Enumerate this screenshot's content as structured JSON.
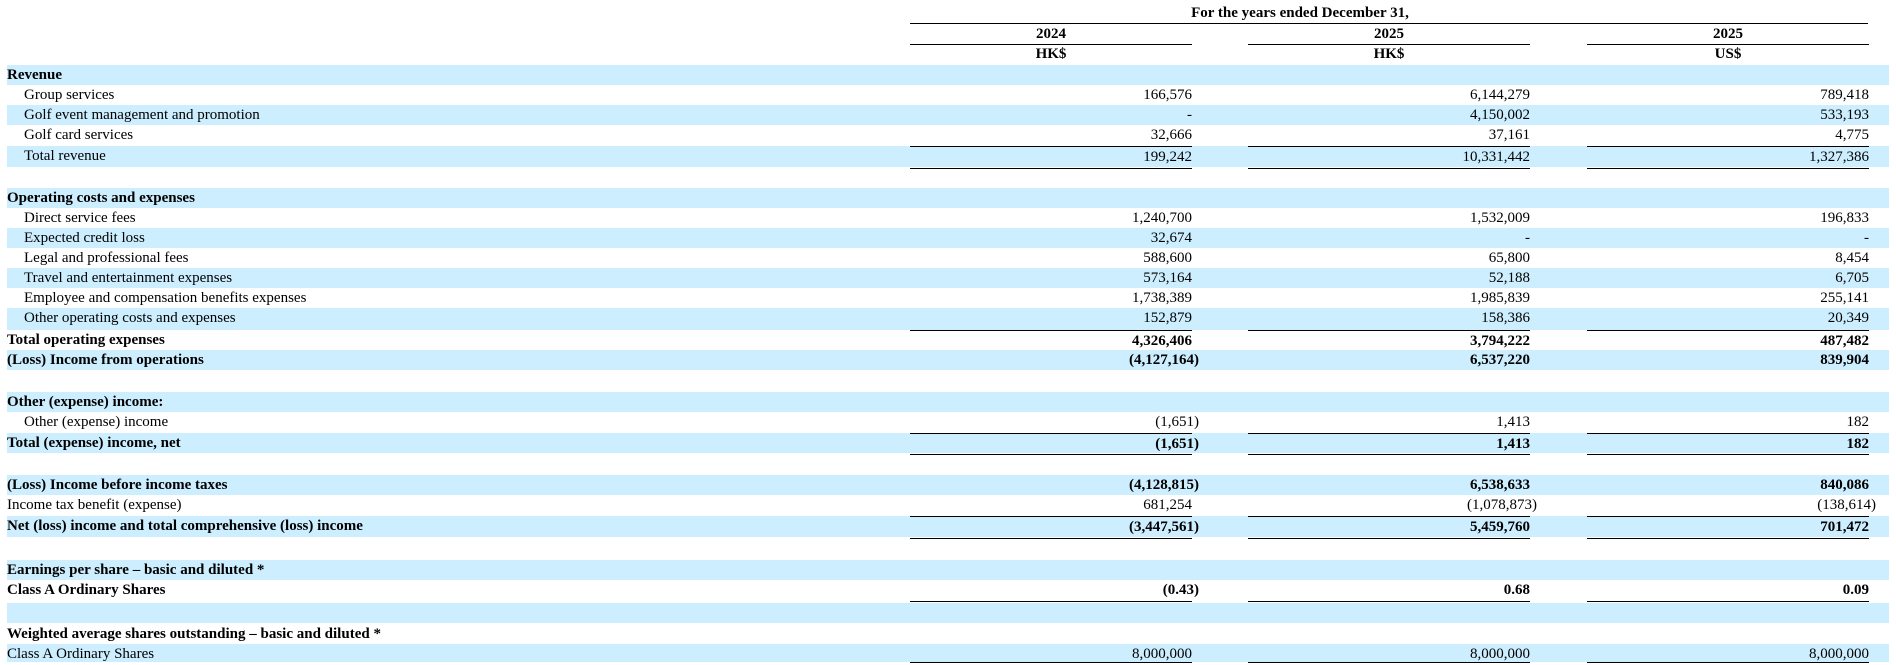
{
  "header": {
    "period_label": "For the years ended December 31,",
    "columns": [
      {
        "year": "2024",
        "currency": "HK$"
      },
      {
        "year": "2025",
        "currency": "HK$"
      },
      {
        "year": "2025",
        "currency": "US$"
      }
    ]
  },
  "rows": [
    {
      "label": "Revenue",
      "bold": true,
      "indent": false,
      "shade": true,
      "values": [
        "",
        "",
        ""
      ]
    },
    {
      "label": "Group services",
      "bold": false,
      "indent": true,
      "shade": false,
      "values": [
        "166,576",
        "6,144,279",
        "789,418"
      ]
    },
    {
      "label": "Golf event management and promotion",
      "bold": false,
      "indent": true,
      "shade": true,
      "values": [
        "-",
        "4,150,002",
        "533,193"
      ]
    },
    {
      "label": "Golf card services",
      "bold": false,
      "indent": true,
      "shade": false,
      "values": [
        "32,666",
        "37,161",
        "4,775"
      ]
    },
    {
      "label": "Total revenue",
      "bold": false,
      "indent": true,
      "shade": true,
      "total": true,
      "values": [
        "199,242",
        "10,331,442",
        "1,327,386"
      ]
    },
    {
      "label": "",
      "shade": false,
      "spacer": true,
      "values": [
        "",
        "",
        ""
      ]
    },
    {
      "label": "Operating costs and expenses",
      "bold": true,
      "indent": false,
      "shade": true,
      "values": [
        "",
        "",
        ""
      ]
    },
    {
      "label": "Direct service fees",
      "bold": false,
      "indent": true,
      "shade": false,
      "values": [
        "1,240,700",
        "1,532,009",
        "196,833"
      ]
    },
    {
      "label": "Expected credit loss",
      "bold": false,
      "indent": true,
      "shade": true,
      "values": [
        "32,674",
        "-",
        "-"
      ]
    },
    {
      "label": "Legal and professional fees",
      "bold": false,
      "indent": true,
      "shade": false,
      "values": [
        "588,600",
        "65,800",
        "8,454"
      ]
    },
    {
      "label": "Travel and entertainment expenses",
      "bold": false,
      "indent": true,
      "shade": true,
      "values": [
        "573,164",
        "52,188",
        "6,705"
      ]
    },
    {
      "label": "Employee and compensation benefits expenses",
      "bold": false,
      "indent": true,
      "shade": false,
      "values": [
        "1,738,389",
        "1,985,839",
        "255,141"
      ]
    },
    {
      "label": "Other operating costs and expenses",
      "bold": false,
      "indent": true,
      "shade": true,
      "values": [
        "152,879",
        "158,386",
        "20,349"
      ]
    },
    {
      "label": "Total operating expenses",
      "bold": true,
      "indent": false,
      "shade": false,
      "total": true,
      "values": [
        "4,326,406",
        "3,794,222",
        "487,482"
      ]
    },
    {
      "label": "(Loss) Income from operations",
      "bold": true,
      "indent": false,
      "shade": true,
      "values": [
        "(4,127,164)",
        "6,537,220",
        "839,904"
      ]
    },
    {
      "label": "",
      "shade": false,
      "spacer": true,
      "values": [
        "",
        "",
        ""
      ]
    },
    {
      "label": "Other (expense) income:",
      "bold": true,
      "indent": false,
      "shade": true,
      "values": [
        "",
        "",
        ""
      ]
    },
    {
      "label": "Other (expense) income",
      "bold": false,
      "indent": true,
      "shade": false,
      "values": [
        "(1,651)",
        "1,413",
        "182"
      ]
    },
    {
      "label": "Total (expense) income, net",
      "bold": true,
      "indent": false,
      "shade": true,
      "total": true,
      "values": [
        "(1,651)",
        "1,413",
        "182"
      ]
    },
    {
      "label": "",
      "shade": false,
      "spacer": true,
      "values": [
        "",
        "",
        ""
      ]
    },
    {
      "label": "(Loss) Income before income taxes",
      "bold": true,
      "indent": false,
      "shade": true,
      "values": [
        "(4,128,815)",
        "6,538,633",
        "840,086"
      ]
    },
    {
      "label": "Income tax benefit (expense)",
      "bold": false,
      "indent": false,
      "shade": false,
      "values": [
        "681,254",
        "(1,078,873)",
        "(138,614)"
      ]
    },
    {
      "label": "Net (loss) income and total comprehensive (loss) income",
      "bold": true,
      "indent": false,
      "shade": true,
      "total": true,
      "values": [
        "(3,447,561)",
        "5,459,760",
        "701,472"
      ]
    },
    {
      "label": "",
      "shade": false,
      "spacer": true,
      "values": [
        "",
        "",
        ""
      ]
    },
    {
      "label": "Earnings per share – basic and diluted *",
      "bold": true,
      "indent": false,
      "shade": true,
      "values": [
        "",
        "",
        ""
      ]
    },
    {
      "label": "Class A Ordinary Shares",
      "bold": true,
      "indent": false,
      "shade": false,
      "underline": true,
      "values": [
        "(0.43)",
        "0.68",
        "0.09"
      ]
    },
    {
      "label": "",
      "shade": true,
      "spacer": true,
      "values": [
        "",
        "",
        ""
      ]
    },
    {
      "label": "Weighted average shares outstanding – basic and diluted *",
      "bold": true,
      "indent": false,
      "shade": false,
      "values": [
        "",
        "",
        ""
      ]
    },
    {
      "label": "Class A Ordinary Shares",
      "bold": false,
      "indent": false,
      "shade": true,
      "underline": true,
      "values": [
        "8,000,000",
        "8,000,000",
        "8,000,000"
      ]
    }
  ]
}
